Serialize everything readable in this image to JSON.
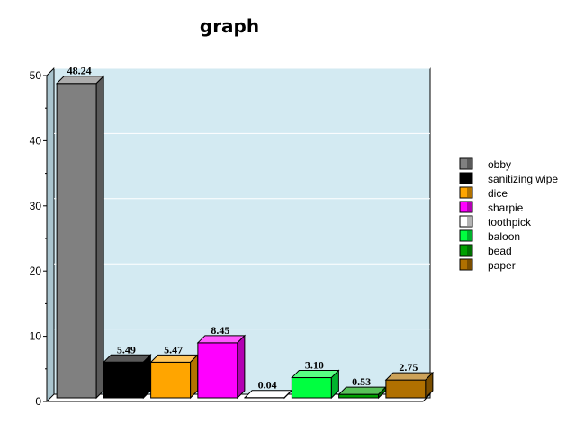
{
  "chart_data": {
    "type": "bar",
    "title": "graph",
    "xlabel": "",
    "ylabel": "",
    "ylim": [
      0,
      50
    ],
    "yticks": [
      0,
      10,
      20,
      30,
      40,
      50
    ],
    "grid": true,
    "legend_position": "right",
    "categories": [
      "obby",
      "sanitizing wipe",
      "dice",
      "sharpie",
      "toothpick",
      "baloon",
      "bead",
      "paper"
    ],
    "values": [
      48.24,
      5.49,
      5.47,
      8.45,
      0.04,
      3.1,
      0.53,
      2.75
    ],
    "value_labels": [
      "48.24",
      "5.49",
      "5.47",
      "8.45",
      "0.04",
      "3.10",
      "0.53",
      "2.75"
    ],
    "colors": [
      "#808080",
      "#000000",
      "#FFA500",
      "#FF00FF",
      "#FFFFFF",
      "#00FF40",
      "#00A000",
      "#B07000"
    ],
    "background_color": "#D3EAF2"
  }
}
